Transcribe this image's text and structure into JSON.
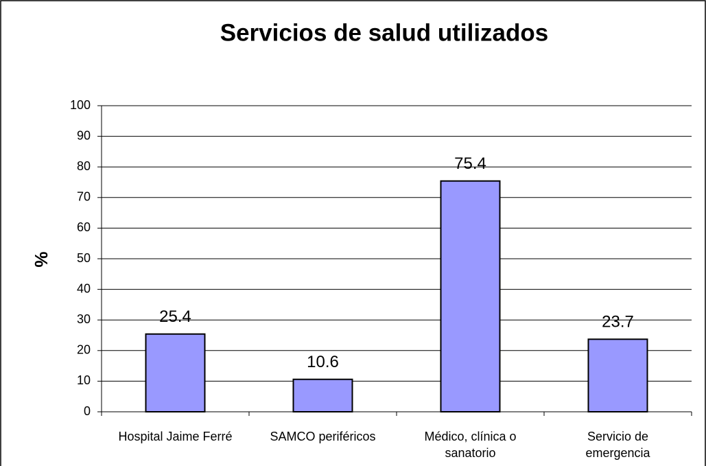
{
  "chart_data": {
    "type": "bar",
    "title": "Servicios de salud utilizados",
    "ylabel": "%",
    "categories": [
      "Hospital Jaime Ferré",
      "SAMCO periféricos",
      "Médico, clínica o sanatorio",
      "Servicio de emergencia"
    ],
    "values": [
      25.4,
      10.6,
      75.4,
      23.7
    ],
    "color": "#9999ff",
    "ylim": [
      0,
      100
    ],
    "yticks": [
      0,
      10,
      20,
      30,
      40,
      50,
      60,
      70,
      80,
      90,
      100
    ],
    "grid": true
  }
}
